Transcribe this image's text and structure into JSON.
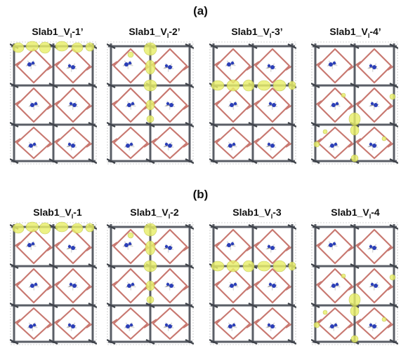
{
  "figure": {
    "row_a": {
      "label": "(a)",
      "panels": [
        {
          "prefix": "Slab1_V",
          "sub": "I",
          "suffix": "-1’"
        },
        {
          "prefix": "Slab1_V",
          "sub": "I",
          "suffix": "-2’"
        },
        {
          "prefix": "Slab1_V",
          "sub": "I",
          "suffix": "-3’"
        },
        {
          "prefix": "Slab1_V",
          "sub": "I",
          "suffix": "-4’"
        }
      ]
    },
    "row_b": {
      "label": "(b)",
      "panels": [
        {
          "prefix": "Slab1_V",
          "sub": "I",
          "suffix": "-1"
        },
        {
          "prefix": "Slab1_V",
          "sub": "I",
          "suffix": "-2"
        },
        {
          "prefix": "Slab1_V",
          "sub": "I",
          "suffix": "-3"
        },
        {
          "prefix": "Slab1_V",
          "sub": "I",
          "suffix": "-4"
        }
      ]
    }
  },
  "colors": {
    "lead_iodide_bond": "#c87870",
    "octahedra_frame": "#5a5e66",
    "nitrogen": "#2b3fb8",
    "hydrogen_carbon": "#d9d9d9",
    "charge_density_isosurface": "#e8ee6a"
  }
}
